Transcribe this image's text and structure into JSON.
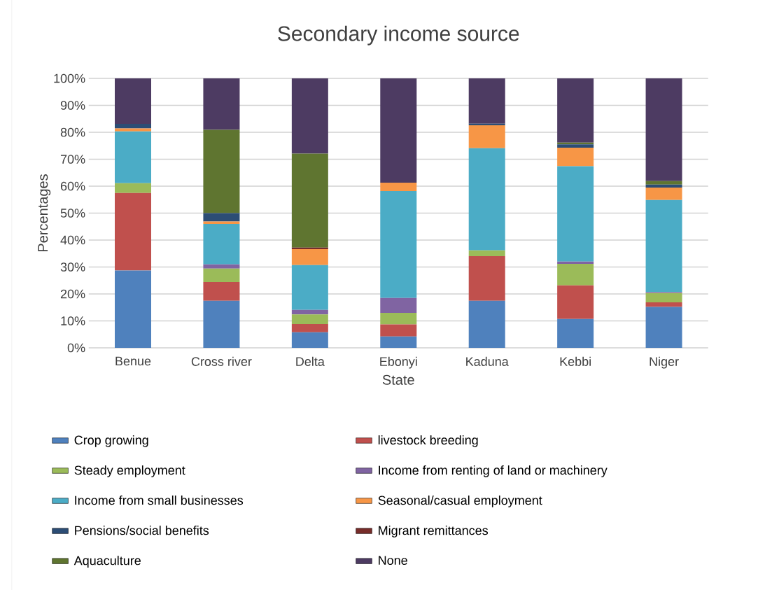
{
  "chart_data": {
    "type": "bar",
    "stacked": true,
    "title": "Secondary income source",
    "xlabel": "State",
    "ylabel": "Percentages",
    "categories": [
      "Benue",
      "Cross river",
      "Delta",
      "Ebonyi",
      "Kaduna",
      "Kebbi",
      "Niger"
    ],
    "series": [
      {
        "name": "Crop growing",
        "color": "#4f81bd",
        "values": [
          28.7,
          17.5,
          5.8,
          4.2,
          17.5,
          10.7,
          15.2
        ]
      },
      {
        "name": "livestock breeding",
        "color": "#c0504d",
        "values": [
          28.8,
          6.9,
          3.0,
          4.5,
          16.5,
          12.5,
          1.7
        ]
      },
      {
        "name": "Steady employment",
        "color": "#9bbb59",
        "values": [
          3.6,
          5.0,
          3.6,
          4.3,
          2.2,
          8.0,
          3.4
        ]
      },
      {
        "name": "Income from renting of land or machinery",
        "color": "#8064a2",
        "values": [
          0,
          1.6,
          1.7,
          5.5,
          0,
          0.8,
          0.4
        ]
      },
      {
        "name": "Income from small businesses",
        "color": "#4bacc6",
        "values": [
          19.2,
          15.0,
          16.6,
          39.7,
          37.9,
          35.4,
          34.2
        ]
      },
      {
        "name": "Seasonal/casual employment",
        "color": "#f79646",
        "values": [
          1.1,
          0.9,
          5.9,
          3.1,
          8.5,
          6.9,
          4.6
        ]
      },
      {
        "name": "Pensions/social benefits",
        "color": "#2c4d75",
        "values": [
          1.7,
          3.1,
          0,
          0,
          0.6,
          1.2,
          1.1
        ]
      },
      {
        "name": "Migrant remittances",
        "color": "#772c2a",
        "values": [
          0,
          0,
          0.6,
          0,
          0,
          0,
          0
        ]
      },
      {
        "name": "Aquaculture",
        "color": "#5f7530",
        "values": [
          0,
          30.9,
          34.9,
          0,
          0,
          0.7,
          1.3
        ]
      },
      {
        "name": "None",
        "color": "#4d3b62",
        "values": [
          16.9,
          19.1,
          27.9,
          38.7,
          16.8,
          23.8,
          38.1
        ]
      }
    ],
    "ylim": [
      0,
      100
    ],
    "yticks": [
      {
        "value": 0,
        "label": "0%"
      },
      {
        "value": 10,
        "label": "10%"
      },
      {
        "value": 20,
        "label": "20%"
      },
      {
        "value": 30,
        "label": "30%"
      },
      {
        "value": 40,
        "label": "40%"
      },
      {
        "value": 50,
        "label": "50%"
      },
      {
        "value": 60,
        "label": "60%"
      },
      {
        "value": 70,
        "label": "70%"
      },
      {
        "value": 80,
        "label": "80%"
      },
      {
        "value": 90,
        "label": "90%"
      },
      {
        "value": 100,
        "label": "100%"
      }
    ],
    "grid": "y",
    "legend": "bottom"
  }
}
